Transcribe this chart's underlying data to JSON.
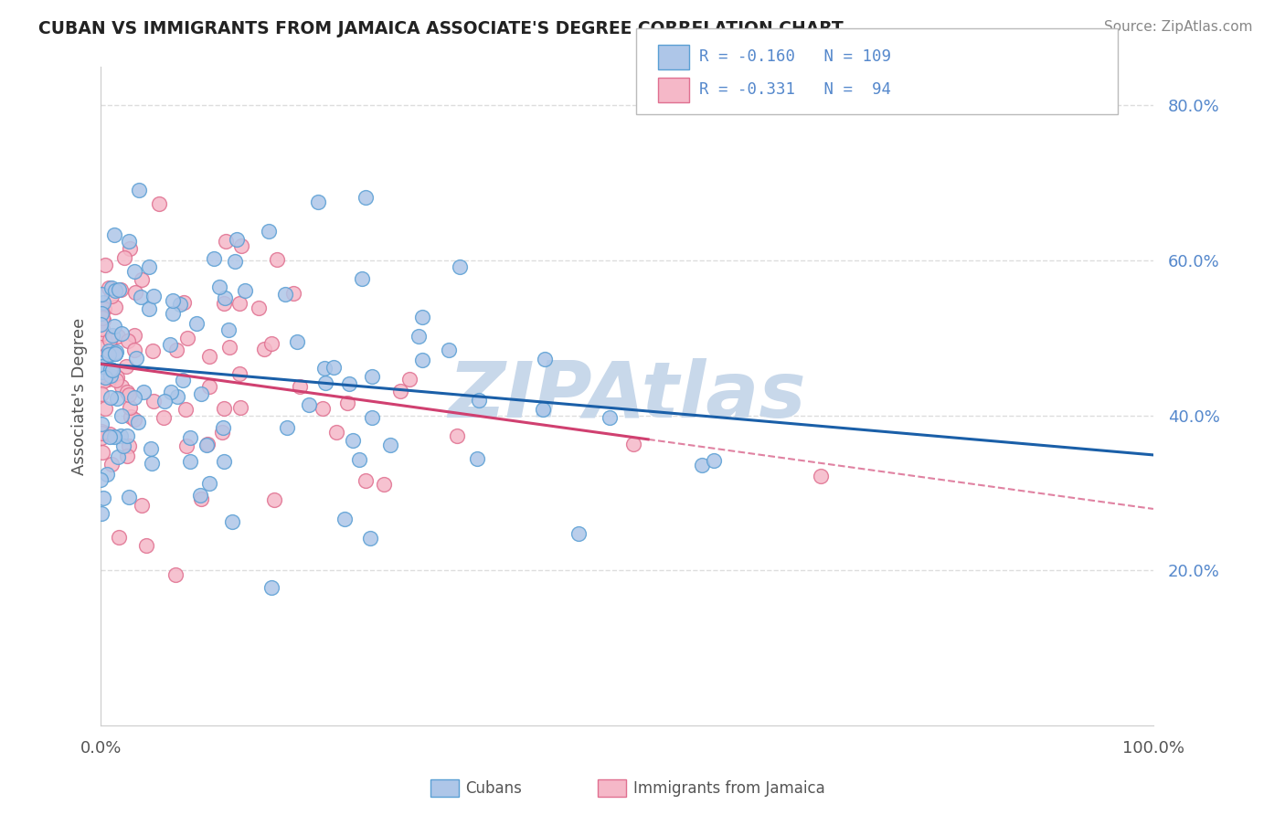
{
  "title": "CUBAN VS IMMIGRANTS FROM JAMAICA ASSOCIATE'S DEGREE CORRELATION CHART",
  "source": "Source: ZipAtlas.com",
  "ylabel": "Associate's Degree",
  "xlim": [
    0.0,
    1.0
  ],
  "ylim": [
    0.0,
    0.85
  ],
  "cubans_R": -0.16,
  "cubans_N": 109,
  "jamaica_R": -0.331,
  "jamaica_N": 94,
  "cubans_color": "#aec6e8",
  "cubans_edge": "#5a9fd4",
  "jamaica_color": "#f5b8c8",
  "jamaica_edge": "#e07090",
  "cubans_line_color": "#1a5fa8",
  "jamaica_line_color": "#d04070",
  "background_color": "#ffffff",
  "watermark": "ZIPAtlas",
  "watermark_color": "#c8d8ea",
  "title_color": "#222222",
  "source_color": "#888888",
  "tick_color": "#5588cc",
  "label_color": "#555555",
  "grid_color": "#dddddd",
  "legend_edge_color": "#bbbbbb",
  "cubans_line_solid_end": 1.0,
  "jamaica_line_solid_end": 0.52,
  "jamaica_line_end": 1.0,
  "cuba_seed": 12,
  "jam_seed": 99
}
